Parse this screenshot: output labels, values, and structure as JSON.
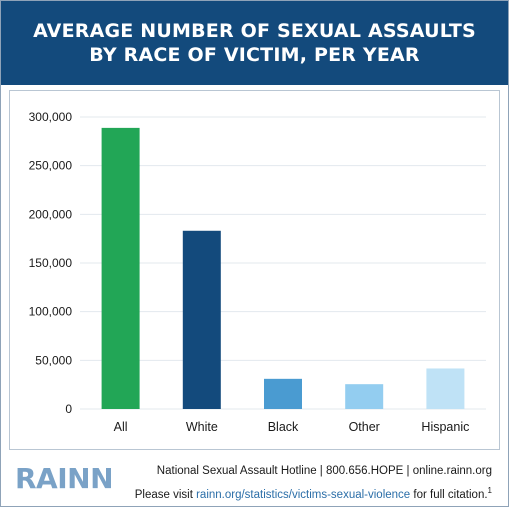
{
  "header": {
    "title_line1": "AVERAGE NUMBER OF SEXUAL ASSAULTS",
    "title_line2": "BY RACE OF VICTIM, PER YEAR"
  },
  "chart_data": {
    "type": "bar",
    "title": "AVERAGE NUMBER OF SEXUAL ASSAULTS BY RACE OF VICTIM, PER YEAR",
    "categories": [
      "All",
      "White",
      "Black",
      "Other",
      "Hispanic"
    ],
    "values": [
      288820,
      183110,
      31000,
      25500,
      41640
    ],
    "colors": [
      "#22a656",
      "#134a7c",
      "#4a9bd1",
      "#93cdf0",
      "#bfe2f6"
    ],
    "xlabel": "",
    "ylabel": "",
    "ylim": [
      0,
      300000
    ],
    "yticks": [
      0,
      50000,
      100000,
      150000,
      200000,
      250000,
      300000
    ],
    "ytick_labels": [
      "0",
      "50,000",
      "100,000",
      "150,000",
      "200,000",
      "250,000",
      "300,000"
    ],
    "grid": true,
    "legend": "none"
  },
  "footer": {
    "logo": "RAINN",
    "line1": "National Sexual Assault Hotline | 800.656.HOPE | online.rainn.org",
    "line2_prefix": "Please visit ",
    "line2_link": "rainn.org/statistics/victims-sexual-violence",
    "line2_suffix": " for full citation.",
    "footnote": "1"
  }
}
